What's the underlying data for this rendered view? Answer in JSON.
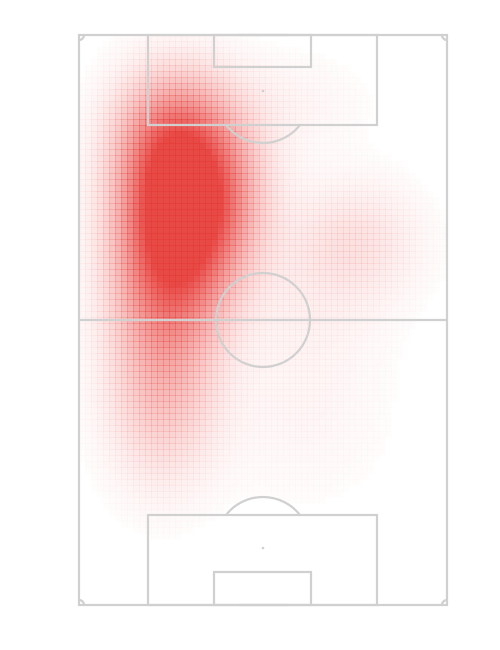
{
  "chart_data": {
    "type": "heatmap",
    "description_of_axes": "",
    "pitch_orientation": "vertical",
    "grid": false,
    "colors": {
      "background": "#ffffff",
      "pitch_lines": "#d0d0d0",
      "heat": "#e53935"
    },
    "heat_zones": [
      {
        "x": 0.3,
        "y": 0.28,
        "intensity": 1.0,
        "spread_x": 0.11,
        "spread_y": 0.1
      },
      {
        "x": 0.25,
        "y": 0.38,
        "intensity": 0.55,
        "spread_x": 0.1,
        "spread_y": 0.1
      },
      {
        "x": 0.24,
        "y": 0.18,
        "intensity": 0.4,
        "spread_x": 0.1,
        "spread_y": 0.08
      },
      {
        "x": 0.23,
        "y": 0.52,
        "intensity": 0.32,
        "spread_x": 0.1,
        "spread_y": 0.12
      },
      {
        "x": 0.22,
        "y": 0.66,
        "intensity": 0.14,
        "spread_x": 0.1,
        "spread_y": 0.1
      },
      {
        "x": 0.74,
        "y": 0.36,
        "intensity": 0.14,
        "spread_x": 0.12,
        "spread_y": 0.07
      },
      {
        "x": 0.62,
        "y": 0.47,
        "intensity": 0.06,
        "spread_x": 0.14,
        "spread_y": 0.1
      },
      {
        "x": 0.55,
        "y": 0.12,
        "intensity": 0.05,
        "spread_x": 0.15,
        "spread_y": 0.06
      },
      {
        "x": 0.6,
        "y": 0.68,
        "intensity": 0.04,
        "spread_x": 0.16,
        "spread_y": 0.1
      }
    ]
  }
}
